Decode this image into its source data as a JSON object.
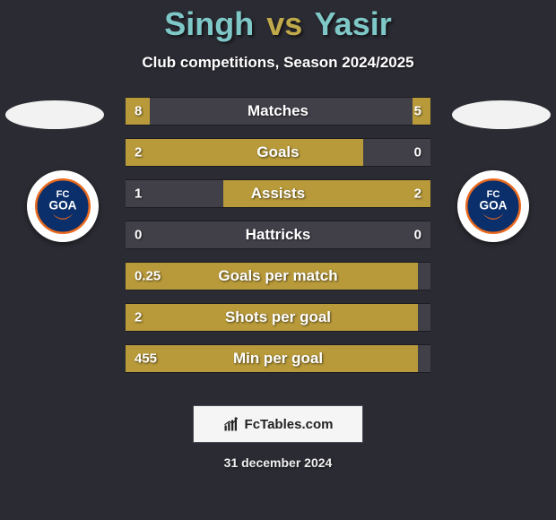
{
  "colors": {
    "background": "#2b2b33",
    "title_p1": "#7fc8c8",
    "title_vs": "#c0a94a",
    "title_p2": "#7fc8c8",
    "subtitle": "#ffffff",
    "bar_base": "#414049",
    "bar_highlight": "#b89a3a",
    "bar_text": "#ffffff",
    "ellipse": "#f2f2f2",
    "badge_bg": "#ffffff",
    "footer_border": "#4a4a55",
    "footer_bg": "#f5f5f5"
  },
  "title": {
    "player1": "Singh",
    "vs": "vs",
    "player2": "Yasir"
  },
  "subtitle": "Club competitions, Season 2024/2025",
  "team_badge": {
    "name": "FC Goa",
    "primary": "#0a2f6b",
    "accent": "#e96a1f",
    "text": "#ffffff"
  },
  "stats": [
    {
      "label": "Matches",
      "left_value": "8",
      "right_value": "5",
      "left_fill_pct": 8,
      "right_fill_pct": 6,
      "highlight": "left"
    },
    {
      "label": "Goals",
      "left_value": "2",
      "right_value": "0",
      "left_fill_pct": 78,
      "right_fill_pct": 0,
      "highlight": "left"
    },
    {
      "label": "Assists",
      "left_value": "1",
      "right_value": "2",
      "left_fill_pct": 0,
      "right_fill_pct": 68,
      "highlight": "right"
    },
    {
      "label": "Hattricks",
      "left_value": "0",
      "right_value": "0",
      "left_fill_pct": 0,
      "right_fill_pct": 0,
      "highlight": "none"
    },
    {
      "label": "Goals per match",
      "left_value": "0.25",
      "right_value": "",
      "left_fill_pct": 96,
      "right_fill_pct": 0,
      "highlight": "left"
    },
    {
      "label": "Shots per goal",
      "left_value": "2",
      "right_value": "",
      "left_fill_pct": 96,
      "right_fill_pct": 0,
      "highlight": "left"
    },
    {
      "label": "Min per goal",
      "left_value": "455",
      "right_value": "",
      "left_fill_pct": 96,
      "right_fill_pct": 0,
      "highlight": "left"
    }
  ],
  "footer": {
    "site": "FcTables.com"
  },
  "date": "31 december 2024"
}
